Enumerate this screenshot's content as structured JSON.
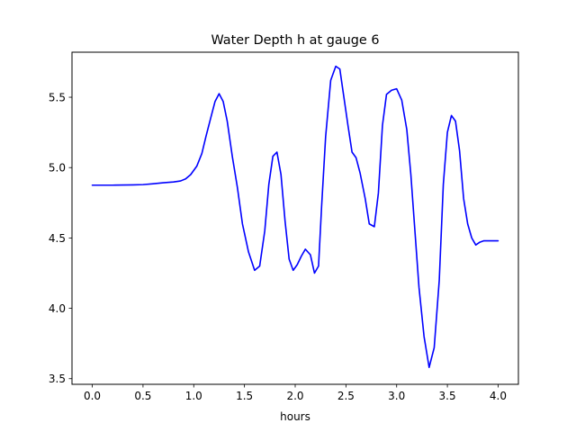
{
  "chart_data": {
    "type": "line",
    "title": "Water Depth h at gauge 6",
    "xlabel": "hours",
    "ylabel": "",
    "xlim": [
      -0.2,
      4.2
    ],
    "ylim": [
      3.46,
      5.82
    ],
    "xticks": [
      0.0,
      0.5,
      1.0,
      1.5,
      2.0,
      2.5,
      3.0,
      3.5,
      4.0
    ],
    "xtick_labels": [
      "0.0",
      "0.5",
      "1.0",
      "1.5",
      "2.0",
      "2.5",
      "3.0",
      "3.5",
      "4.0"
    ],
    "yticks": [
      3.5,
      4.0,
      4.5,
      5.0,
      5.5
    ],
    "ytick_labels": [
      "3.5",
      "4.0",
      "4.5",
      "5.0",
      "5.5"
    ],
    "grid": false,
    "series": [
      {
        "color": "#0000ff",
        "x": [
          0.0,
          0.2,
          0.4,
          0.5,
          0.6,
          0.7,
          0.8,
          0.87,
          0.92,
          0.97,
          1.03,
          1.08,
          1.12,
          1.17,
          1.21,
          1.25,
          1.29,
          1.33,
          1.38,
          1.43,
          1.48,
          1.54,
          1.6,
          1.65,
          1.7,
          1.74,
          1.78,
          1.82,
          1.86,
          1.9,
          1.94,
          1.98,
          2.02,
          2.06,
          2.1,
          2.15,
          2.19,
          2.23,
          2.26,
          2.3,
          2.35,
          2.4,
          2.44,
          2.47,
          2.52,
          2.56,
          2.6,
          2.64,
          2.69,
          2.73,
          2.78,
          2.82,
          2.86,
          2.9,
          2.95,
          3.0,
          3.05,
          3.1,
          3.14,
          3.18,
          3.22,
          3.27,
          3.32,
          3.37,
          3.42,
          3.46,
          3.5,
          3.54,
          3.58,
          3.62,
          3.66,
          3.7,
          3.74,
          3.78,
          3.82,
          3.86,
          3.9,
          3.94,
          3.97,
          4.0
        ],
        "y": [
          4.875,
          4.875,
          4.877,
          4.879,
          4.885,
          4.892,
          4.898,
          4.905,
          4.92,
          4.95,
          5.01,
          5.1,
          5.22,
          5.36,
          5.47,
          5.525,
          5.47,
          5.33,
          5.08,
          4.86,
          4.6,
          4.4,
          4.27,
          4.3,
          4.55,
          4.88,
          5.08,
          5.11,
          4.95,
          4.62,
          4.35,
          4.27,
          4.31,
          4.37,
          4.42,
          4.38,
          4.25,
          4.3,
          4.72,
          5.22,
          5.62,
          5.72,
          5.7,
          5.55,
          5.3,
          5.11,
          5.07,
          4.96,
          4.78,
          4.6,
          4.58,
          4.82,
          5.3,
          5.52,
          5.55,
          5.56,
          5.48,
          5.27,
          4.95,
          4.55,
          4.15,
          3.8,
          3.58,
          3.72,
          4.2,
          4.88,
          5.25,
          5.37,
          5.33,
          5.12,
          4.78,
          4.6,
          4.5,
          4.45,
          4.47,
          4.48,
          4.48,
          4.48,
          4.48,
          4.48
        ]
      }
    ]
  }
}
